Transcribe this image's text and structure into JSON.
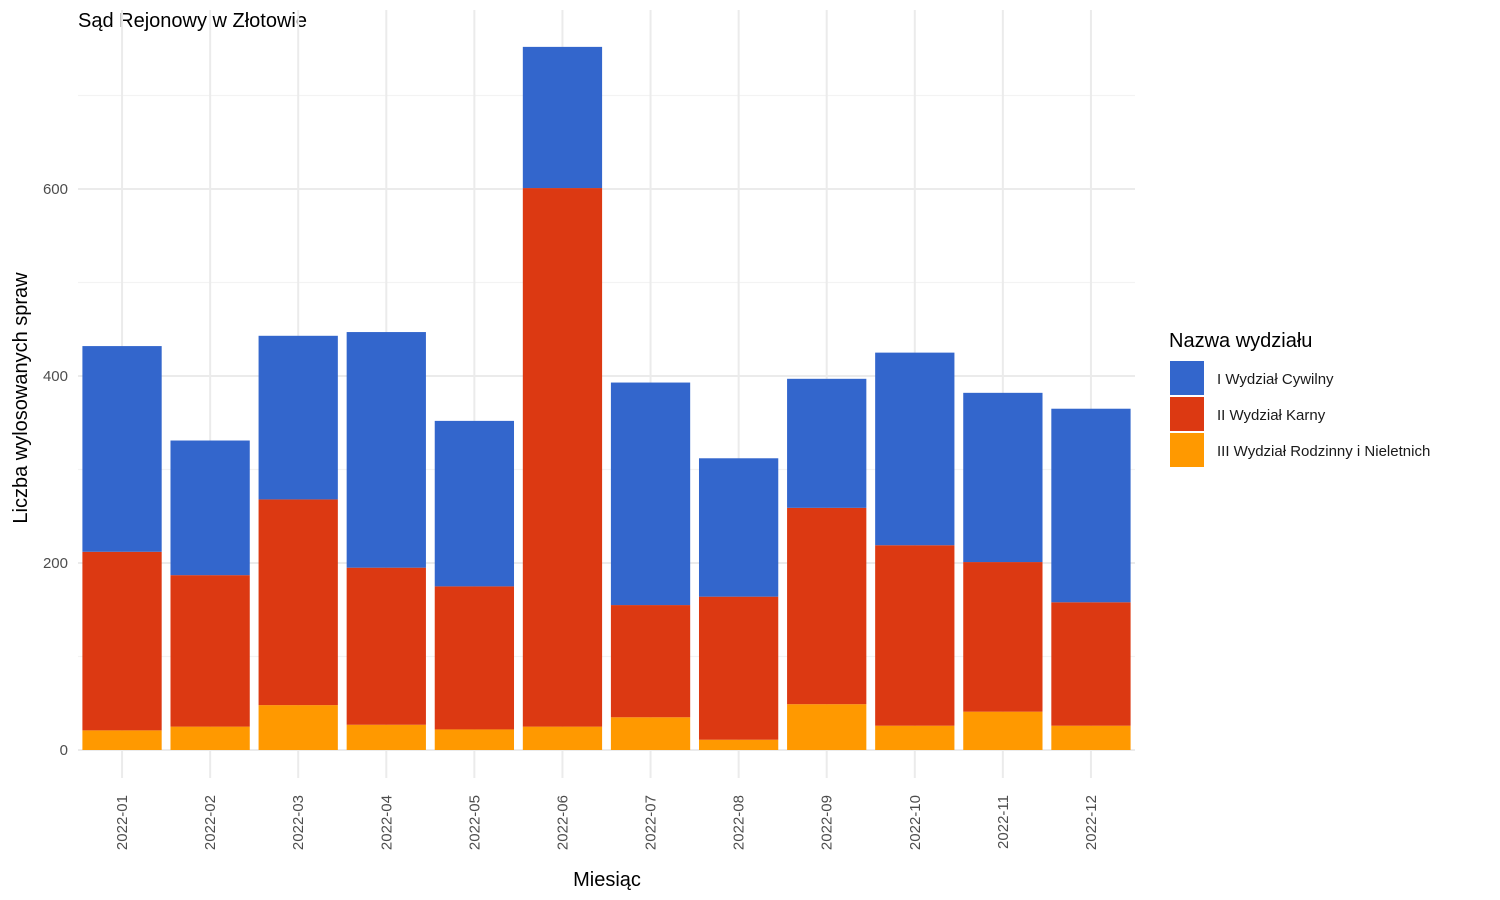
{
  "chart_data": {
    "type": "bar",
    "stacked": true,
    "title": "Sąd Rejonowy w Złotowie",
    "xlabel": "Miesiąc",
    "ylabel": "Liczba wylosowanych spraw",
    "ylim": [
      0,
      760
    ],
    "yticks": [
      0,
      200,
      400,
      600
    ],
    "grid": true,
    "legend_position": "right",
    "legend_title": "Nazwa wydziału",
    "categories": [
      "2022-01",
      "2022-02",
      "2022-03",
      "2022-04",
      "2022-05",
      "2022-06",
      "2022-07",
      "2022-08",
      "2022-09",
      "2022-10",
      "2022-11",
      "2022-12"
    ],
    "series": [
      {
        "name": "III Wydział Rodzinny i Nieletnich",
        "color": "#FF9900",
        "values": [
          21,
          25,
          48,
          27,
          22,
          25,
          35,
          11,
          49,
          26,
          41,
          26
        ]
      },
      {
        "name": "II Wydział Karny",
        "color": "#DC3912",
        "values": [
          191,
          162,
          220,
          168,
          153,
          576,
          120,
          153,
          210,
          193,
          160,
          132
        ]
      },
      {
        "name": "I Wydział Cywilny",
        "color": "#3366CC",
        "values": [
          220,
          144,
          175,
          252,
          177,
          151,
          238,
          148,
          138,
          206,
          181,
          207
        ]
      }
    ],
    "legend_order": [
      "I Wydział Cywilny",
      "II Wydział Karny",
      "III Wydział Rodzinny i Nieletnich"
    ]
  }
}
